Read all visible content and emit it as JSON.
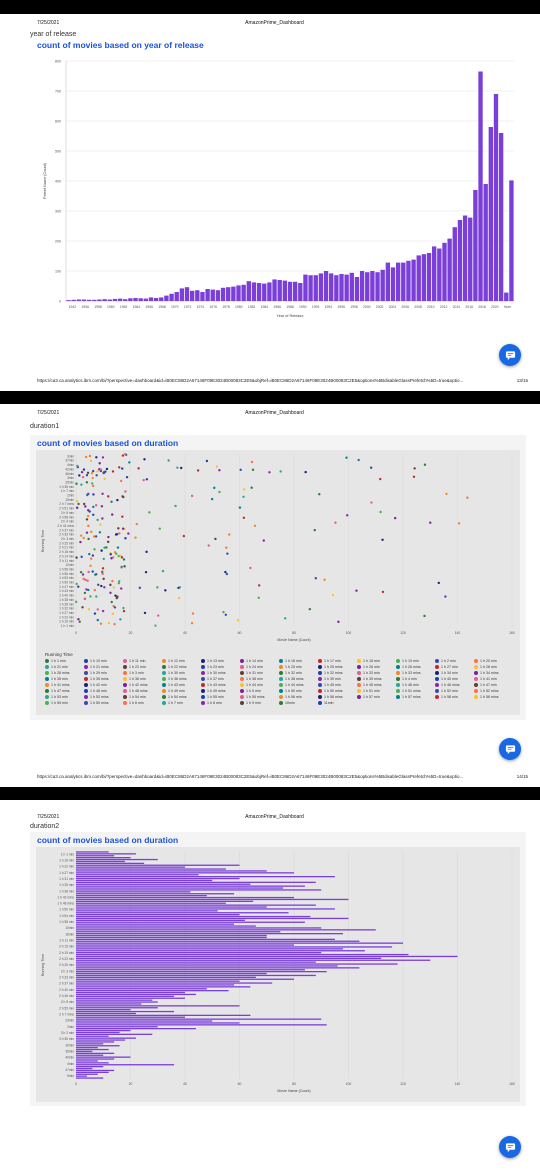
{
  "dashboard_title": "AmazonPrime_Dashboard",
  "date": "7/25/2021",
  "footer_url": "https://ca3.ca.analytics.ibm.com/bi/?perspective=dashboard&id=iB0EC86D2A67146F09E3024B00083C2E5&objRef=iB0EC86D2A67146F09E3024B00083C2E5&options%5BdisableGlassPrefetch%5D=true&optio...",
  "colors": {
    "accent": "#1a52d8",
    "bar": "#7b3fd9",
    "fab": "#1868e4"
  },
  "pages": [
    {
      "tab_name": "year of release",
      "page_number": "13/15",
      "chart_title": "count of movies based on year of release"
    },
    {
      "tab_name": "duration1",
      "page_number": "14/15",
      "chart_title": "count of movies based on duration"
    },
    {
      "tab_name": "duration2",
      "page_number": "",
      "chart_title": "count of movies based on duration"
    }
  ],
  "chat_icon": "chat-bubble-icon",
  "chart_data": [
    {
      "type": "bar",
      "title": "count of movies based on year of release",
      "xlabel": "Year of Release",
      "ylabel": "Primet Name (Count)",
      "ylim": [
        0,
        800
      ],
      "ytick_labels": [
        "0",
        "100",
        "200",
        "300",
        "400",
        "500",
        "600",
        "700",
        "800"
      ],
      "xtick_labels": [
        "1942",
        "1956",
        "1958",
        "1960",
        "1962",
        "1964",
        "1966",
        "1968",
        "1970",
        "1972",
        "1974",
        "1976",
        "1978",
        "1980",
        "1982",
        "1984",
        "1986",
        "1988",
        "1990",
        "1992",
        "1994",
        "1996",
        "1998",
        "2000",
        "2002",
        "2004",
        "2006",
        "2008",
        "2010",
        "2012",
        "2014",
        "2016",
        "2018",
        "2020",
        "Nom"
      ],
      "values": [
        3,
        4,
        5,
        5,
        4,
        4,
        5,
        6,
        5,
        7,
        8,
        6,
        9,
        10,
        9,
        8,
        12,
        10,
        12,
        18,
        24,
        30,
        42,
        46,
        34,
        36,
        30,
        40,
        38,
        36,
        44,
        46,
        48,
        52,
        54,
        66,
        62,
        60,
        58,
        62,
        72,
        70,
        68,
        64,
        64,
        60,
        88,
        86,
        86,
        92,
        100,
        92,
        86,
        90,
        88,
        94,
        80,
        100,
        96,
        100,
        96,
        104,
        128,
        112,
        128,
        128,
        134,
        138,
        152,
        156,
        160,
        182,
        175,
        194,
        208,
        246,
        270,
        285,
        278,
        370,
        765,
        390,
        580,
        690,
        560,
        28,
        402
      ]
    },
    {
      "type": "scatter",
      "title": "count of movies based on duration",
      "xlabel": "Movie Name (Count)",
      "ylabel": "Running Time",
      "xlim": [
        0,
        160
      ],
      "xtick_labels": [
        "0",
        "20",
        "40",
        "60",
        "80",
        "100",
        "120",
        "140",
        "160"
      ],
      "ytick_labels": [
        "3min",
        "37min",
        "4min",
        "42min",
        "46min",
        "3min",
        "25min",
        "1 h 35 min",
        "1 h 7 min",
        "2min",
        "15min",
        "2 h 7 mins",
        "2 h 51 min",
        "2 h 5 min",
        "2 h 58 min",
        "2 h 4 min",
        "2 h 41 mins",
        "2 h 37 min",
        "2 h 33 min",
        "2 h 3 min",
        "2 h 25 min",
        "2 h 21 min",
        "2 h 18 min",
        "2 h 14 min",
        "2 h 11 min",
        "12min",
        "1 h 58 min",
        "1 h 56 min",
        "1 h 53 min",
        "1 h 50 min",
        "1 h 47 min",
        "1 h 43 min",
        "1 h 40 min",
        "1 h 38 min",
        "1 h 35 min",
        "1 h 32 min",
        "1 h 27 min",
        "1 h 22 min",
        "1 h 19 min",
        "1 h 1 min"
      ],
      "legend_title": "Running Time",
      "legend": [
        "1 h 1 min",
        "1 h 10 min",
        "1 h 11 min",
        "1 h 12 min",
        "1 h 13 min",
        "1 h 14 min",
        "1 h 16 min",
        "1 h 17 min",
        "1 h 18 min",
        "1 h 19 min",
        "1 h 2 min",
        "1 h 20 min",
        "1 h 21 min",
        "1 h 21 mins",
        "1 h 22 min",
        "1 h 22 mins",
        "1 h 23 min",
        "1 h 24 min",
        "1 h 25 min",
        "1 h 25 mins",
        "1 h 26 min",
        "1 h 26 mins",
        "1 h 27 min",
        "1 h 28 min",
        "1 h 28 mins",
        "1 h 29 min",
        "1 h 3 min",
        "1 h 30 min",
        "1 h 30 mins",
        "1 h 31 min",
        "1 h 32 min",
        "1 h 32 mins",
        "1 h 33 min",
        "1 h 33 mins",
        "1 h 34 min",
        "1 h 34 mins",
        "1 h 35 min",
        "1 h 35 mins",
        "1 h 36 min",
        "1 h 36 mins",
        "1 h 37 min",
        "1 h 38 min",
        "1 h 38 mins",
        "1 h 39 min",
        "1 h 39 mins",
        "1 h 4 min",
        "1 h 40 min",
        "1 h 41 min",
        "1 h 41 mins",
        "1 h 42 min",
        "1 h 42 mins",
        "1 h 43 min",
        "1 h 43 mins",
        "1 h 44 min",
        "1 h 44 mins",
        "1 h 45 min",
        "1 h 45 mins",
        "1 h 46 min",
        "1 h 46 mins",
        "1 h 47 min",
        "1 h 47 mins",
        "1 h 48 min",
        "1 h 48 mins",
        "1 h 49 min",
        "1 h 49 mins",
        "1 h 5 min",
        "1 h 50 min",
        "1 h 50 mins",
        "1 h 51 min",
        "1 h 51 mins",
        "1 h 52 min",
        "1 h 52 mins",
        "1 h 53 min",
        "1 h 53 mins",
        "1 h 54 min",
        "1 h 54 mins",
        "1 h 55 min",
        "1 h 55 mins",
        "1 h 56 min",
        "1 h 56 mins",
        "1 h 57 min",
        "1 h 57 mins",
        "1 h 58 min",
        "1 h 58 mins",
        "1 h 59 min",
        "1 h 59 mins",
        "1 h 6 min",
        "1 h 7 min",
        "1 h 8 min",
        "1 h 9 min",
        "10min",
        "11min"
      ]
    },
    {
      "type": "bar",
      "orientation": "horizontal",
      "title": "count of movies based on duration",
      "xlabel": "Movie Name (Count)",
      "ylabel": "Running Time",
      "xlim": [
        0,
        160
      ],
      "xtick_labels": [
        "0",
        "20",
        "40",
        "60",
        "80",
        "100",
        "120",
        "140",
        "160"
      ],
      "ytick_labels": [
        "1 h 1 min",
        "1 h 16 min",
        "1 h 22 min",
        "1 h 27 min",
        "1 h 31 min",
        "1 h 35 min",
        "1 h 38 min",
        "1 h 42 mins",
        "1 h 46 mins",
        "1 h 50 min",
        "1 h 54 min",
        "1 h 58 min",
        "10min",
        "16min",
        "2 h 11 min",
        "2 h 15 min",
        "2 h 19 min",
        "2 h 22 min",
        "2 h 26 min",
        "2 h 3 min",
        "2 h 33 min",
        "2 h 37 min",
        "2 h 40 min",
        "2 h 46 min",
        "2 h 5 min",
        "2 h 55 min",
        "2 h 7 mins",
        "23min",
        "2min",
        "3 h 2 min",
        "3 h 36 min",
        "30min",
        "35min",
        "40min",
        "4min",
        "47min",
        "5min"
      ],
      "values": [
        12,
        22,
        14,
        20,
        30,
        18,
        25,
        60,
        40,
        55,
        70,
        80,
        45,
        95,
        60,
        50,
        88,
        64,
        84,
        76,
        90,
        42,
        58,
        48,
        80,
        100,
        65,
        55,
        88,
        70,
        95,
        52,
        78,
        60,
        86,
        100,
        62,
        84,
        58,
        66,
        90,
        110,
        75,
        98,
        70,
        70,
        95,
        104,
        120,
        80,
        116,
        98,
        106,
        90,
        122,
        140,
        112,
        130,
        88,
        118,
        96,
        104,
        84,
        92,
        70,
        88,
        66,
        80,
        60,
        72,
        58,
        64,
        48,
        56,
        40,
        44,
        36,
        40,
        28,
        30,
        24,
        60,
        30,
        20,
        36,
        22,
        64,
        40,
        90,
        50,
        60,
        92,
        30,
        44,
        20,
        16,
        28,
        12,
        22,
        18,
        14,
        10,
        16,
        8,
        12,
        6,
        14,
        10,
        20,
        14,
        8,
        12,
        36,
        10,
        6,
        14,
        12,
        8,
        4,
        10
      ]
    }
  ]
}
